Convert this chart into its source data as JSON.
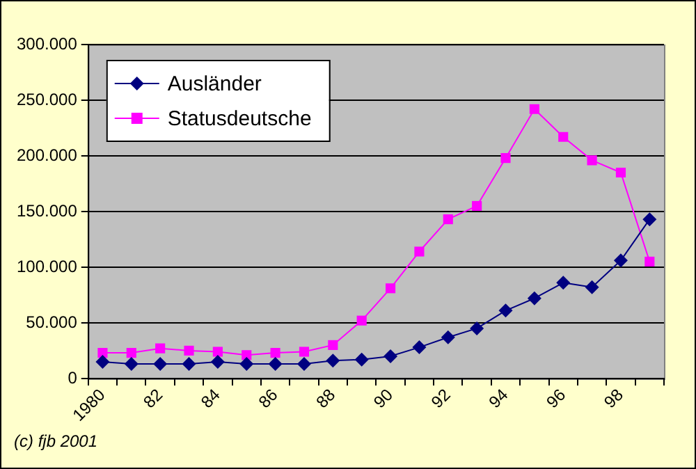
{
  "chart_data": {
    "type": "line",
    "categories": [
      "1980",
      null,
      "82",
      null,
      "84",
      null,
      "86",
      null,
      "88",
      null,
      "90",
      null,
      "92",
      null,
      "94",
      null,
      "96",
      null,
      "98",
      null
    ],
    "series": [
      {
        "name": "Ausländer",
        "color": "#000080",
        "marker": "diamond",
        "values": [
          15000,
          13000,
          13000,
          13000,
          15000,
          13000,
          13000,
          13000,
          16000,
          17000,
          20000,
          28000,
          37000,
          45000,
          61000,
          72000,
          86000,
          82000,
          106000,
          143000
        ]
      },
      {
        "name": "Statusdeutsche",
        "color": "#ff00ff",
        "marker": "square",
        "values": [
          23000,
          23000,
          27000,
          25000,
          24000,
          21000,
          23000,
          24000,
          30000,
          52000,
          81000,
          114000,
          143000,
          155000,
          198000,
          242000,
          217000,
          196000,
          185000,
          105000
        ]
      }
    ],
    "ylim": [
      0,
      300000
    ],
    "yticks": [
      {
        "value": 0,
        "label": "0"
      },
      {
        "value": 50000,
        "label": "50.000"
      },
      {
        "value": 100000,
        "label": "100.000"
      },
      {
        "value": 150000,
        "label": "150.000"
      },
      {
        "value": 200000,
        "label": "200.000"
      },
      {
        "value": 250000,
        "label": "250.000"
      },
      {
        "value": 300000,
        "label": "300.000"
      }
    ],
    "grid": "y",
    "legend": "top left",
    "line_style": "solid",
    "annotations": [
      "(c) fjb 2001"
    ]
  }
}
